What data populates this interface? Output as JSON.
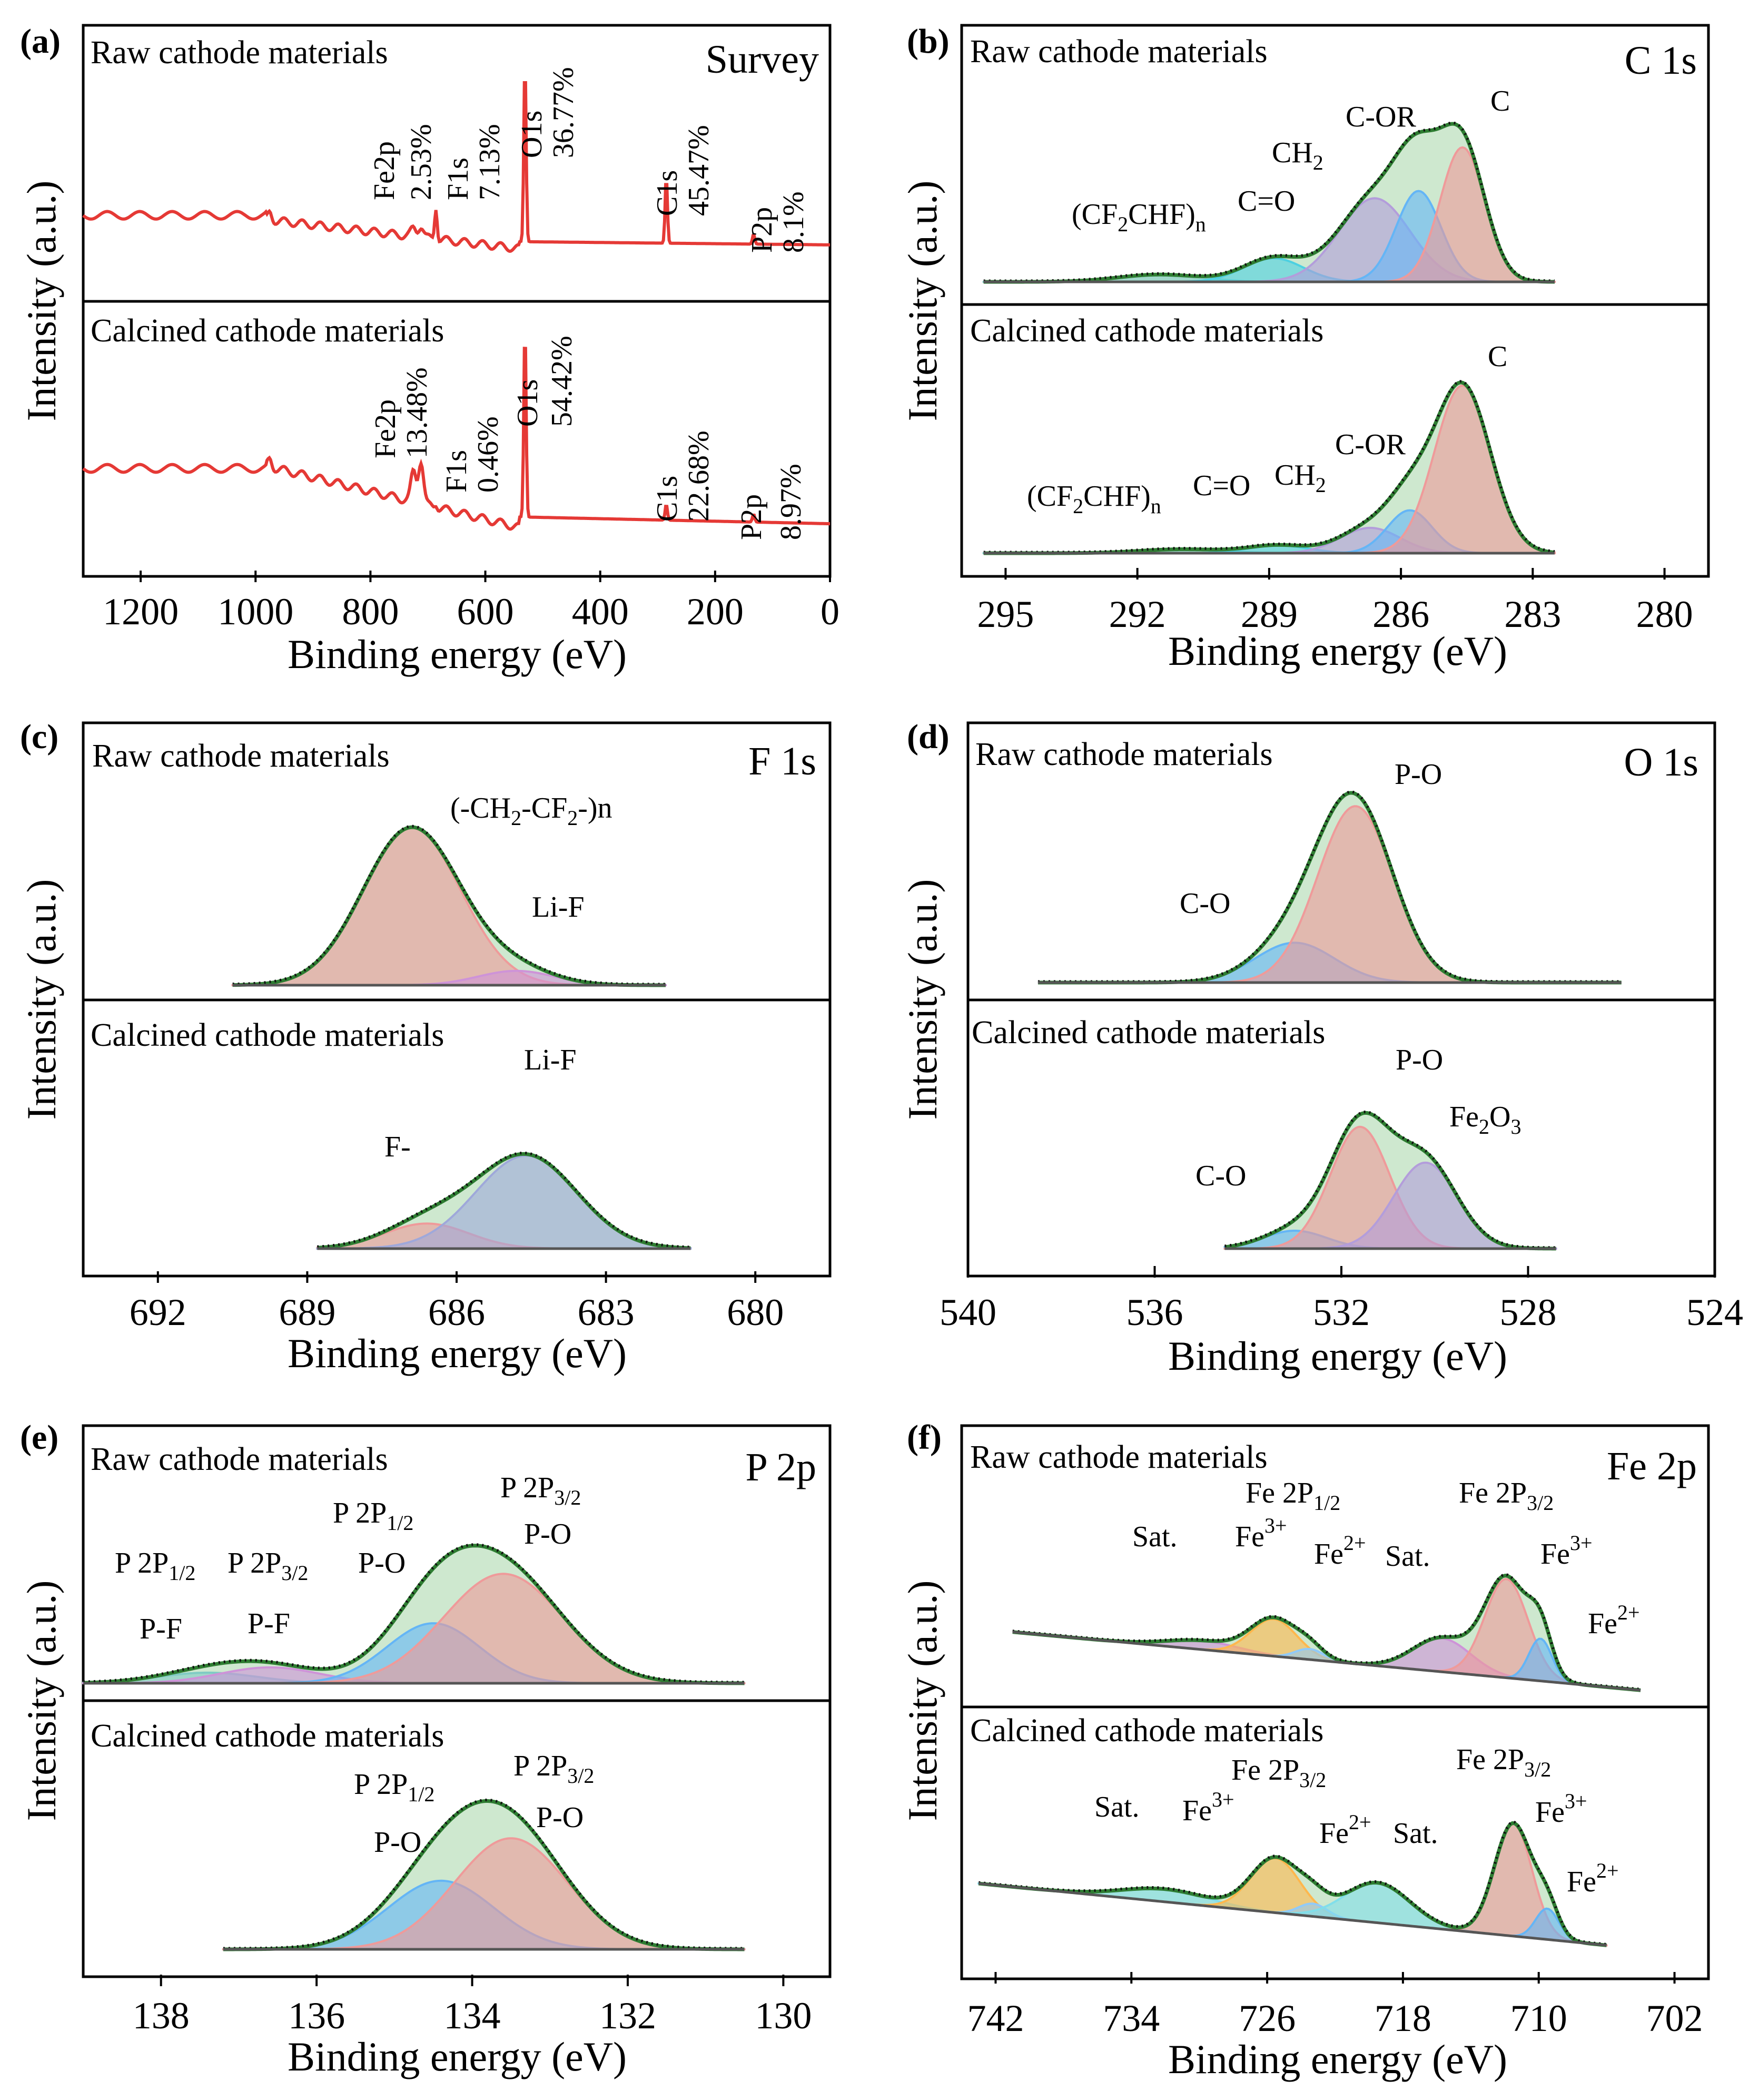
{
  "chart_data": [
    {
      "id": "a",
      "type": "line",
      "panel_letter": "(a)",
      "title": "Survey",
      "xlabel": "Binding energy (eV)",
      "ylabel": "Intensity (a.u.)",
      "xlim": [
        1300,
        0
      ],
      "xticks": [
        "1200",
        "1000",
        "800",
        "600",
        "400",
        "200",
        "0"
      ],
      "color": "#e53935",
      "top": {
        "label": "Raw cathode materials",
        "annotations": [
          {
            "text": "Fe2p",
            "value": "2.53%",
            "x": 715
          },
          {
            "text": "F1s",
            "value": "7.13%",
            "x": 685
          },
          {
            "text": "O1s",
            "value": "36.77%",
            "x": 531
          },
          {
            "text": "C1s",
            "value": "45.47%",
            "x": 285
          },
          {
            "text": "P2p",
            "value": "8.1%",
            "x": 133
          }
        ]
      },
      "bottom": {
        "label": "Calcined cathode materials",
        "annotations": [
          {
            "text": "Fe2p",
            "value": "13.48%",
            "x": 715
          },
          {
            "text": "F1s",
            "value": "0.46%",
            "x": 685
          },
          {
            "text": "O1s",
            "value": "54.42%",
            "x": 531
          },
          {
            "text": "C1s",
            "value": "22.68%",
            "x": 285
          },
          {
            "text": "P2p",
            "value": "8.97%",
            "x": 133
          }
        ]
      }
    },
    {
      "id": "b",
      "type": "area",
      "panel_letter": "(b)",
      "title": "C 1s",
      "xlabel": "Binding energy (eV)",
      "ylabel": "Intensity (a.u.)",
      "xlim": [
        296,
        279
      ],
      "xticks": [
        "295",
        "292",
        "289",
        "286",
        "283",
        "280"
      ],
      "top": {
        "label": "Raw cathode materials",
        "range": [
          295.5,
          282.5
        ],
        "envelope": "#2e7d32",
        "peaks": [
          {
            "name": "(CF2CHF)n",
            "center": 291.5,
            "fwhm": 2.2,
            "height": 0.04,
            "color": "#80cbc4"
          },
          {
            "name": "C=O",
            "center": 288.9,
            "fwhm": 1.6,
            "height": 0.13,
            "color": "#4dd0e1"
          },
          {
            "name": "CH2",
            "center": 286.6,
            "fwhm": 1.9,
            "height": 0.46,
            "color": "#b39ddb"
          },
          {
            "name": "C-OR",
            "center": 285.6,
            "fwhm": 1.2,
            "height": 0.5,
            "color": "#64b5f6"
          },
          {
            "name": "C",
            "center": 284.6,
            "fwhm": 1.2,
            "height": 0.74,
            "color": "#ef9a9a"
          }
        ]
      },
      "bottom": {
        "label": "Calcined cathode materials",
        "range": [
          295.5,
          282.5
        ],
        "envelope": "#2e7d32",
        "peaks": [
          {
            "name": "(CF2CHF)n",
            "center": 291.0,
            "fwhm": 2.2,
            "height": 0.02,
            "color": "#80cbc4"
          },
          {
            "name": "C=O",
            "center": 288.8,
            "fwhm": 1.6,
            "height": 0.04,
            "color": "#4dd0e1"
          },
          {
            "name": "CH2",
            "center": 286.7,
            "fwhm": 1.6,
            "height": 0.13,
            "color": "#b39ddb"
          },
          {
            "name": "C-OR",
            "center": 285.8,
            "fwhm": 1.2,
            "height": 0.22,
            "color": "#64b5f6"
          },
          {
            "name": "C",
            "center": 284.6,
            "fwhm": 1.5,
            "height": 0.86,
            "color": "#ef9a9a"
          }
        ]
      }
    },
    {
      "id": "c",
      "type": "area",
      "panel_letter": "(c)",
      "title": "F 1s",
      "xlabel": "Binding energy (eV)",
      "ylabel": "Intensity (a.u.)",
      "xlim": [
        693.5,
        678.5
      ],
      "xticks": [
        "692",
        "689",
        "686",
        "683",
        "680"
      ],
      "top": {
        "label": "Raw cathode materials",
        "range": [
          690.5,
          681.8
        ],
        "envelope": "#2e7d32",
        "peaks": [
          {
            "name": "(-CH2-CF2-)n",
            "center": 686.9,
            "fwhm": 2.3,
            "height": 0.88,
            "color": "#ef9a9a"
          },
          {
            "name": "Li-F",
            "center": 684.8,
            "fwhm": 1.8,
            "height": 0.08,
            "color": "#ce93d8"
          }
        ]
      },
      "bottom": {
        "label": "Calcined cathode materials",
        "range": [
          688.8,
          681.3
        ],
        "envelope": "#2e7d32",
        "peaks": [
          {
            "name": "F-",
            "center": 686.6,
            "fwhm": 2.0,
            "height": 0.17,
            "color": "#ef9a9a"
          },
          {
            "name": "Li-F",
            "center": 684.6,
            "fwhm": 2.4,
            "height": 0.63,
            "color": "#9fa8da"
          }
        ]
      }
    },
    {
      "id": "d",
      "type": "area",
      "panel_letter": "(d)",
      "title": "O 1s",
      "xlabel": "Binding energy (eV)",
      "ylabel": "Intensity (a.u.)",
      "xlim": [
        540,
        524
      ],
      "xticks": [
        "540",
        "536",
        "532",
        "528",
        "524"
      ],
      "top": {
        "label": "Raw cathode materials",
        "range": [
          538.5,
          526.0
        ],
        "envelope": "#2e7d32",
        "peaks": [
          {
            "name": "C-O",
            "center": 533.0,
            "fwhm": 2.0,
            "height": 0.21,
            "color": "#64b5f6"
          },
          {
            "name": "P-O",
            "center": 531.7,
            "fwhm": 1.9,
            "height": 0.93,
            "color": "#ef9a9a"
          }
        ]
      },
      "bottom": {
        "label": "Calcined cathode materials",
        "range": [
          534.5,
          527.4
        ],
        "envelope": "#2e7d32",
        "peaks": [
          {
            "name": "C-O",
            "center": 533.0,
            "fwhm": 1.6,
            "height": 0.1,
            "color": "#64b5f6"
          },
          {
            "name": "P-O",
            "center": 531.6,
            "fwhm": 1.5,
            "height": 0.68,
            "color": "#ef9a9a"
          },
          {
            "name": "Fe2O3",
            "center": 530.2,
            "fwhm": 1.6,
            "height": 0.48,
            "color": "#b39ddb"
          }
        ]
      }
    },
    {
      "id": "e",
      "type": "area",
      "panel_letter": "(e)",
      "title": "P 2p",
      "xlabel": "Binding energy (eV)",
      "ylabel": "Intensity (a.u.)",
      "xlim": [
        139,
        129.4
      ],
      "xticks": [
        "138",
        "136",
        "134",
        "132",
        "130"
      ],
      "top": {
        "label": "Raw cathode materials",
        "range": [
          139,
          130.5
        ],
        "envelope": "#2e7d32",
        "peaks": [
          {
            "name": "P 2P1/2 P-F",
            "center": 137.4,
            "fwhm": 1.5,
            "height": 0.06,
            "color": "#80cbc4"
          },
          {
            "name": "P 2P3/2 P-F",
            "center": 136.6,
            "fwhm": 1.5,
            "height": 0.09,
            "color": "#ce93d8"
          },
          {
            "name": "P 2P1/2 P-O",
            "center": 134.5,
            "fwhm": 1.4,
            "height": 0.34,
            "color": "#64b5f6"
          },
          {
            "name": "P 2P3/2 P-O",
            "center": 133.6,
            "fwhm": 1.8,
            "height": 0.62,
            "color": "#ef9a9a"
          }
        ]
      },
      "bottom": {
        "label": "Calcined cathode materials",
        "range": [
          137.2,
          130.5
        ],
        "envelope": "#2e7d32",
        "peaks": [
          {
            "name": "P 2P1/2 P-O",
            "center": 134.4,
            "fwhm": 1.6,
            "height": 0.42,
            "color": "#64b5f6"
          },
          {
            "name": "P 2P3/2 P-O",
            "center": 133.5,
            "fwhm": 1.7,
            "height": 0.68,
            "color": "#ef9a9a"
          }
        ]
      }
    },
    {
      "id": "f",
      "type": "area",
      "panel_letter": "(f)",
      "title": "Fe 2p",
      "xlabel": "Binding energy (eV)",
      "ylabel": "Intensity (a.u.)",
      "xlim": [
        744,
        700
      ],
      "xticks": [
        "742",
        "734",
        "726",
        "718",
        "710",
        "702"
      ],
      "top": {
        "label": "Raw cathode materials",
        "range": [
          741,
          704
        ],
        "envelope": "#2e7d32",
        "background": {
          "from": 0.38,
          "to": 0.05
        },
        "peaks": [
          {
            "name": "Sat.",
            "center": 729.8,
            "fwhm": 5.0,
            "height": 0.05,
            "color": "#ce93d8"
          },
          {
            "name": "Fe3+",
            "center": 725.6,
            "fwhm": 3.2,
            "height": 0.21,
            "color": "#ffb74d"
          },
          {
            "name": "Fe2+",
            "center": 723.5,
            "fwhm": 2.0,
            "height": 0.06,
            "color": "#90caf9"
          },
          {
            "name": "Sat.",
            "center": 715.7,
            "fwhm": 4.0,
            "height": 0.19,
            "color": "#ce93d8"
          },
          {
            "name": "Fe3+",
            "center": 711.9,
            "fwhm": 3.0,
            "height": 0.56,
            "color": "#ef9a9a"
          },
          {
            "name": "Fe2+",
            "center": 709.9,
            "fwhm": 1.6,
            "height": 0.24,
            "color": "#64b5f6"
          }
        ]
      },
      "bottom": {
        "label": "Calcined cathode materials",
        "range": [
          743,
          706
        ],
        "envelope": "#2e7d32",
        "background": {
          "from": 0.42,
          "to": 0.08
        },
        "peaks": [
          {
            "name": "Sat.",
            "center": 732.0,
            "fwhm": 6.0,
            "height": 0.07,
            "color": "#80deea"
          },
          {
            "name": "Fe3+",
            "center": 725.5,
            "fwhm": 3.4,
            "height": 0.3,
            "color": "#ffb74d"
          },
          {
            "name": "Fe2+",
            "center": 723.3,
            "fwhm": 2.0,
            "height": 0.07,
            "color": "#90caf9"
          },
          {
            "name": "Sat.",
            "center": 719.5,
            "fwhm": 4.5,
            "height": 0.22,
            "color": "#80deea"
          },
          {
            "name": "Fe3+",
            "center": 711.5,
            "fwhm": 2.6,
            "height": 0.62,
            "color": "#ef9a9a"
          },
          {
            "name": "Fe2+",
            "center": 709.5,
            "fwhm": 1.6,
            "height": 0.17,
            "color": "#64b5f6"
          }
        ]
      }
    }
  ],
  "text": {
    "a": {
      "top": {
        "fe2p": "Fe2p",
        "fe2p_v": "2.53%",
        "f1s": "F1s",
        "f1s_v": "7.13%",
        "o1s": "O1s",
        "o1s_v": "36.77%",
        "c1s": "C1s",
        "c1s_v": "45.47%",
        "p2p": "P2p",
        "p2p_v": "8.1%"
      },
      "bottom": {
        "fe2p": "Fe2p",
        "fe2p_v": "13.48%",
        "f1s": "F1s",
        "f1s_v": "0.46%",
        "o1s": "O1s",
        "o1s_v": "54.42%",
        "c1s": "C1s",
        "c1s_v": "22.68%",
        "p2p": "P2p",
        "p2p_v": "8.97%"
      }
    },
    "b": {
      "cf2chf_open": "(CF",
      "cf2chf_sub2": "2",
      "cf2chf_mid": "CHF)",
      "cf2chf_subn": "n",
      "co": "C=O",
      "ch": "CH",
      "ch_sub": "2",
      "cor": "C-OR",
      "c": "C"
    },
    "c": {
      "ch2cf2": "(-CH",
      "ch2cf2_s1": "2",
      "ch2cf2_mid": "-CF",
      "ch2cf2_s2": "2",
      "ch2cf2_end": "-)n",
      "lif": "Li-F",
      "fminus": "F-"
    },
    "d": {
      "co": "C-O",
      "po": "P-O",
      "fe": "Fe",
      "fe_s1": "2",
      "fe_o": "O",
      "fe_s2": "3"
    },
    "e": {
      "p2p": "P 2P",
      "half": "1/2",
      "threehalf": "3/2",
      "pf": "P-F",
      "po": "P-O"
    },
    "f": {
      "fe2p": "Fe 2P",
      "half": "1/2",
      "threehalf": "3/2",
      "sat": "Sat.",
      "fe": "Fe",
      "fe3": "3+",
      "fe2": "2+"
    }
  }
}
